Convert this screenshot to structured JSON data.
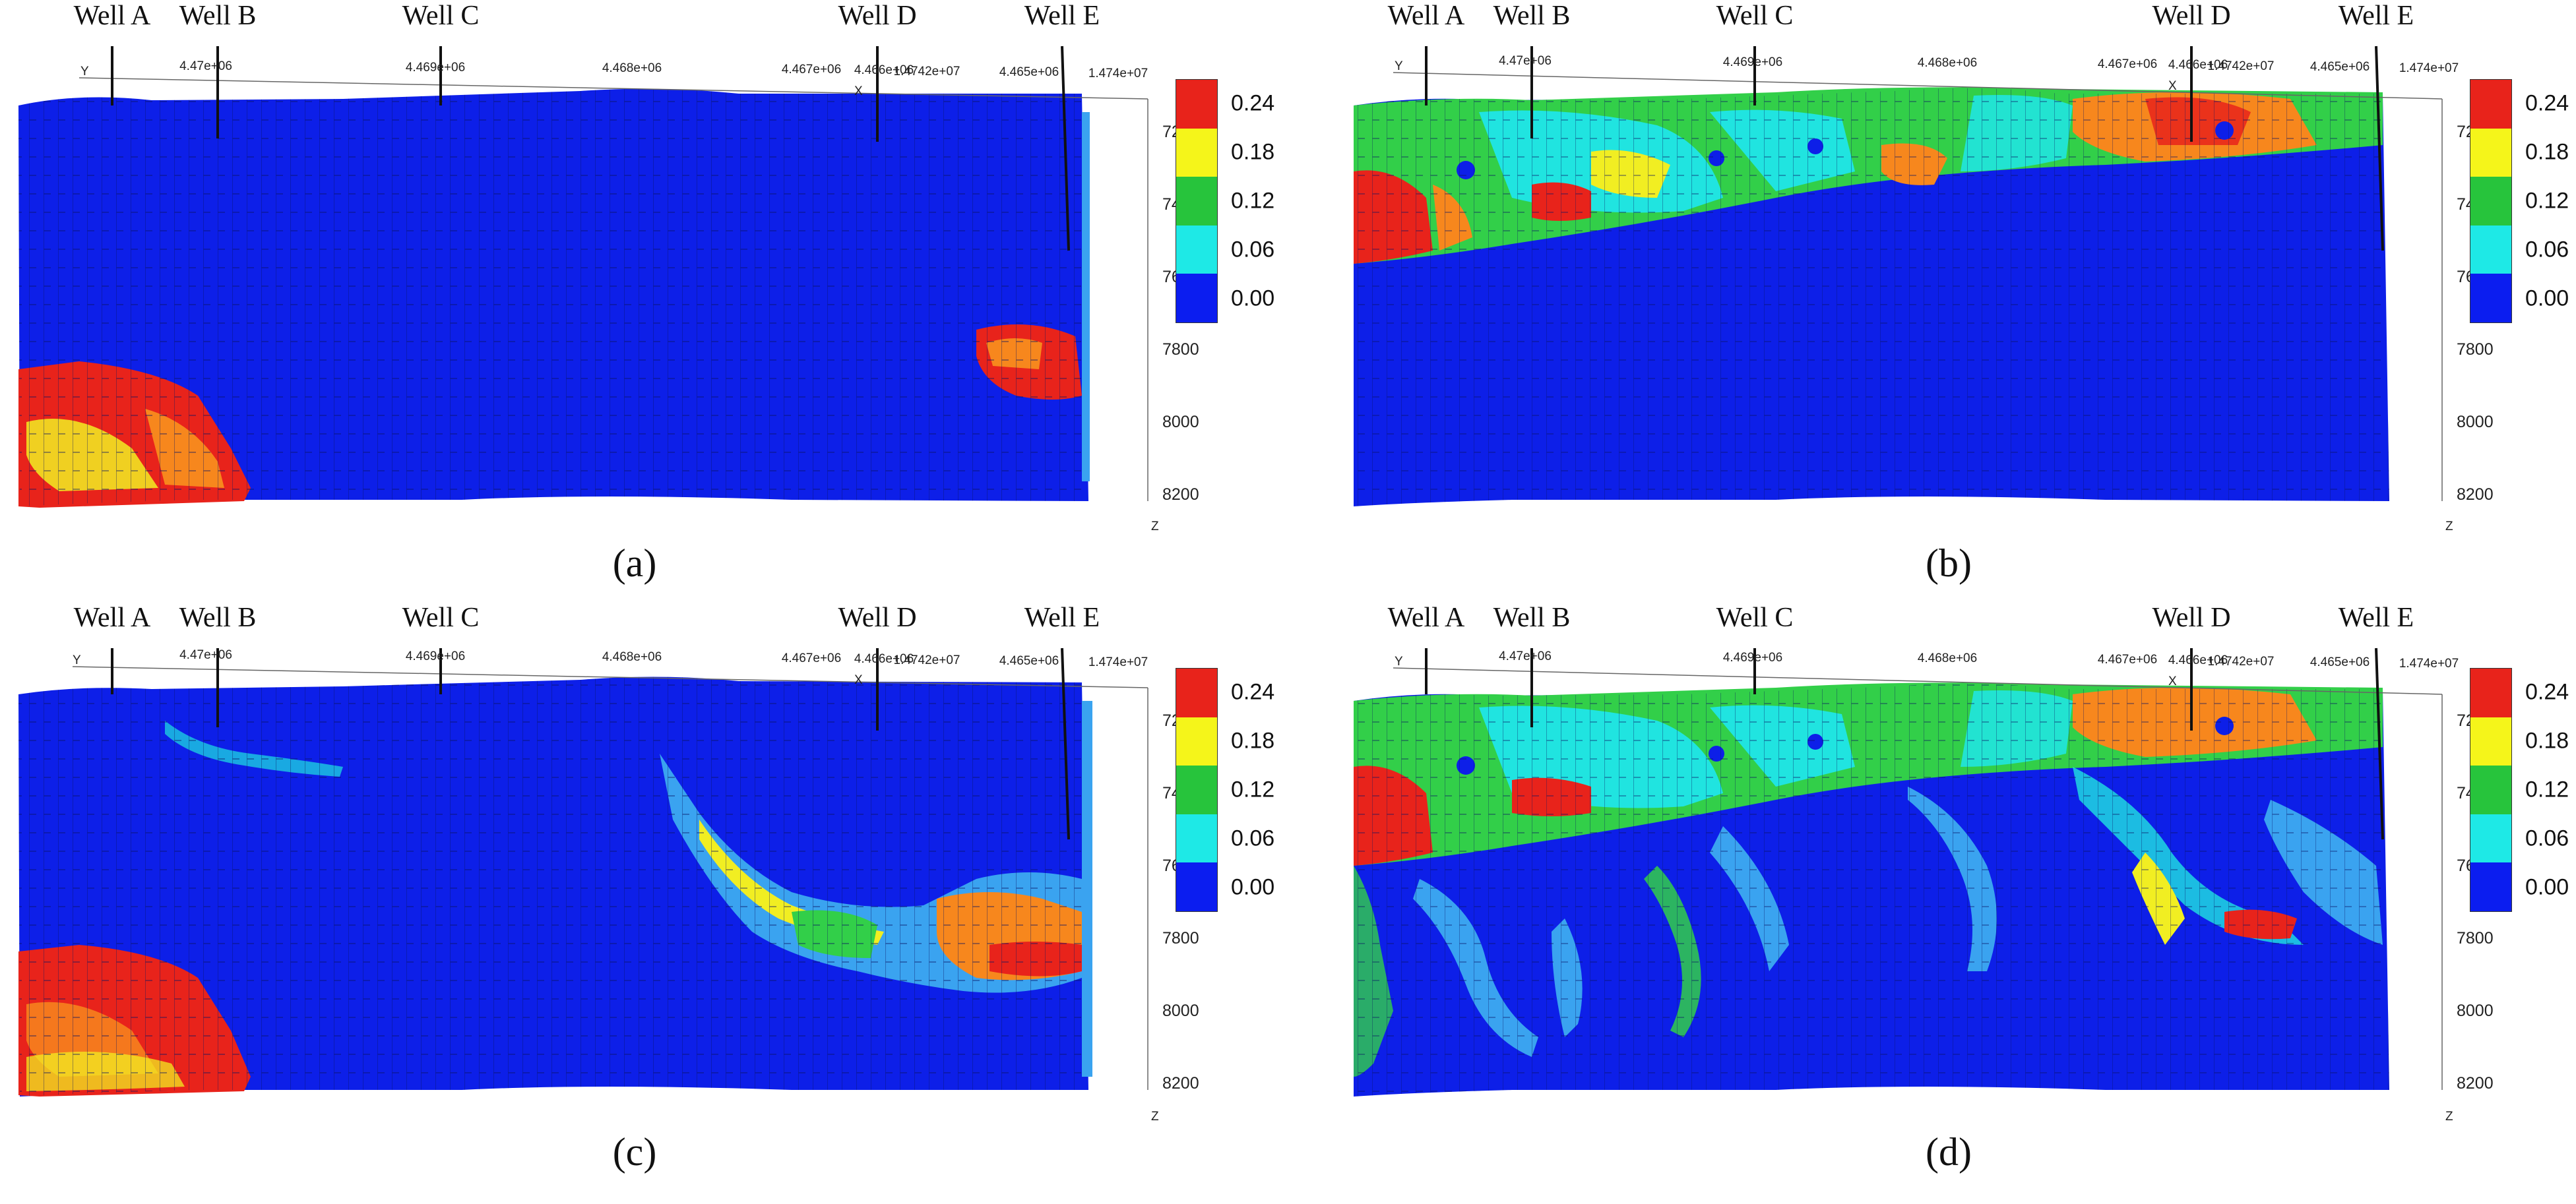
{
  "wells": [
    "Well A",
    "Well B",
    "Well C",
    "Well D",
    "Well E"
  ],
  "x_axis_ticks": [
    "4.47e+06",
    "4.469e+06",
    "4.468e+06",
    "4.467e+06",
    "4.466e+06",
    "1.4742e+07",
    "4.465e+06",
    "1.474e+07"
  ],
  "y_axis_letter": "Y",
  "x_axis_letter": "X",
  "z_axis_letter": "Z",
  "depth_ticks": [
    "7200",
    "7400",
    "7600",
    "7800",
    "8000",
    "8200"
  ],
  "legend": {
    "labels": [
      "0.24",
      "0.18",
      "0.12",
      "0.06",
      "0.00"
    ],
    "colors": [
      "#e8231b",
      "#f5f51a",
      "#27c43c",
      "#1ee9e6",
      "#0b1df0"
    ]
  },
  "colors": {
    "background_blue": "#0d1fe8",
    "red": "#e8231b",
    "orange": "#f7871d",
    "yellow": "#f1ee22",
    "green": "#32cf49",
    "cyan": "#20e4e0",
    "lightblue": "#3aa3f0"
  },
  "panels": [
    {
      "caption": "(a)"
    },
    {
      "caption": "(b)"
    },
    {
      "caption": "(c)"
    },
    {
      "caption": "(d)"
    }
  ]
}
